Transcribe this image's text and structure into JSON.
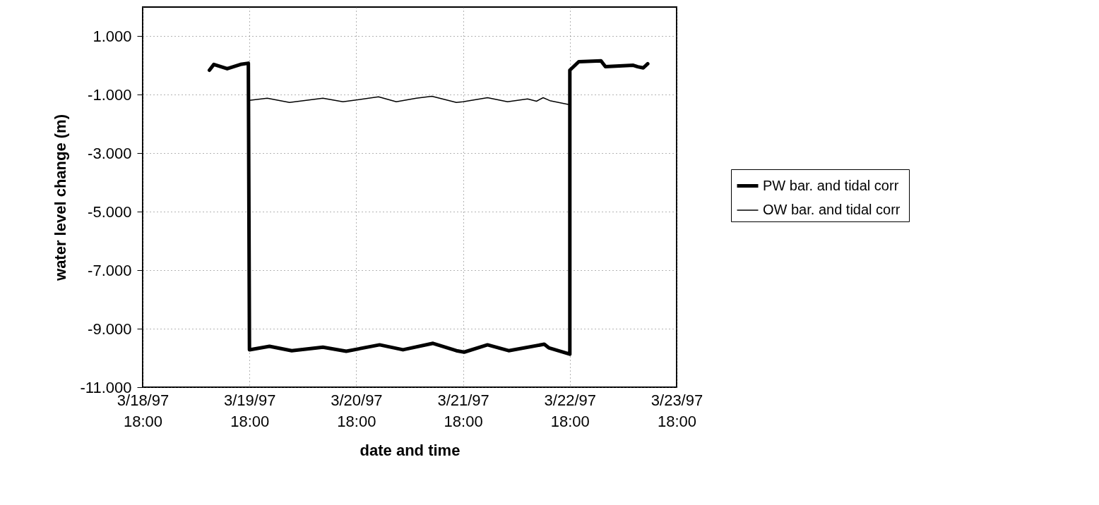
{
  "chart_data": {
    "type": "line",
    "xlabel": "date and time",
    "ylabel": "water level change (m)",
    "xlim": [
      "1997-03-18T18:00",
      "1997-03-23T18:00"
    ],
    "xticks": [
      {
        "value": "1997-03-18T18:00",
        "label": "3/18/97 18:00"
      },
      {
        "value": "1997-03-19T18:00",
        "label": "3/19/97 18:00"
      },
      {
        "value": "1997-03-20T18:00",
        "label": "3/20/97 18:00"
      },
      {
        "value": "1997-03-21T18:00",
        "label": "3/21/97 18:00"
      },
      {
        "value": "1997-03-22T18:00",
        "label": "3/22/97 18:00"
      },
      {
        "value": "1997-03-23T18:00",
        "label": "3/23/97 18:00"
      }
    ],
    "ylim": [
      -11,
      2
    ],
    "yticks": [
      {
        "value": -11,
        "label": "-11.000"
      },
      {
        "value": -9,
        "label": "-9.000"
      },
      {
        "value": -7,
        "label": "-7.000"
      },
      {
        "value": -5,
        "label": "-5.000"
      },
      {
        "value": -3,
        "label": "-3.000"
      },
      {
        "value": -1,
        "label": "-1.000"
      },
      {
        "value": 1,
        "label": "1.000"
      }
    ],
    "grid": true,
    "legend": "right",
    "line_style": "solid",
    "series": [
      {
        "name": "PW bar. and  tidal corr",
        "color": "#000000",
        "x": [
          "1997-03-19T09:00",
          "1997-03-19T10:00",
          "1997-03-19T13:00",
          "1997-03-19T16:00",
          "1997-03-19T17:45",
          "1997-03-19T18:00",
          "1997-03-19T22:30",
          "1997-03-20T03:30",
          "1997-03-20T10:30",
          "1997-03-20T15:45",
          "1997-03-20T23:15",
          "1997-03-21T04:30",
          "1997-03-21T11:15",
          "1997-03-21T16:30",
          "1997-03-21T18:15",
          "1997-03-21T23:30",
          "1997-03-22T04:15",
          "1997-03-22T12:15",
          "1997-03-22T13:15",
          "1997-03-22T18:00",
          "1997-03-22T18:00",
          "1997-03-22T20:00",
          "1997-03-23T01:00",
          "1997-03-23T02:00",
          "1997-03-23T08:15",
          "1997-03-23T09:15",
          "1997-03-23T10:30",
          "1997-03-23T11:30"
        ],
        "values": [
          -0.16,
          0.04,
          -0.11,
          0.04,
          0.08,
          -9.72,
          -9.6,
          -9.75,
          -9.63,
          -9.77,
          -9.55,
          -9.72,
          -9.5,
          -9.75,
          -9.8,
          -9.55,
          -9.75,
          -9.53,
          -9.65,
          -9.87,
          -0.16,
          0.13,
          0.16,
          -0.04,
          0.01,
          -0.04,
          -0.08,
          0.06
        ]
      },
      {
        "name": "OW bar. and  tidal corr",
        "color": "#000000",
        "x": [
          "1997-03-19T18:00",
          "1997-03-19T22:00",
          "1997-03-20T03:00",
          "1997-03-20T10:30",
          "1997-03-20T15:00",
          "1997-03-20T23:00",
          "1997-03-21T03:00",
          "1997-03-21T07:30",
          "1997-03-21T11:00",
          "1997-03-21T16:30",
          "1997-03-21T18:00",
          "1997-03-21T23:30",
          "1997-03-22T04:00",
          "1997-03-22T08:30",
          "1997-03-22T10:30",
          "1997-03-22T12:00",
          "1997-03-22T13:30",
          "1997-03-22T18:00"
        ],
        "values": [
          -1.19,
          -1.12,
          -1.26,
          -1.12,
          -1.24,
          -1.07,
          -1.24,
          -1.12,
          -1.05,
          -1.26,
          -1.24,
          -1.1,
          -1.24,
          -1.14,
          -1.22,
          -1.1,
          -1.2,
          -1.34
        ]
      }
    ]
  }
}
